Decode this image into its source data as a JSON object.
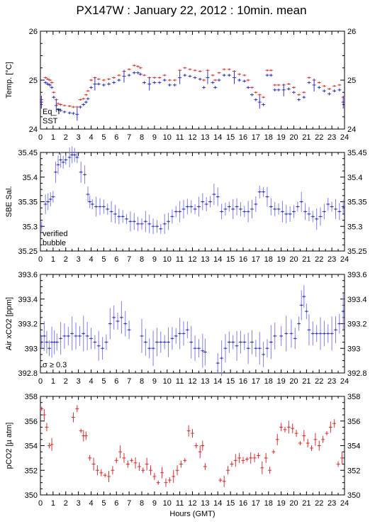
{
  "title": "PX147W : January 22, 2012 : 10min. mean",
  "colors": {
    "red": "#e03030",
    "blue": "#3535c8",
    "lightblue": "#7f7ff2",
    "magenta": "#c030c0"
  },
  "chart_data": [
    {
      "type": "scatter",
      "name": "temperature",
      "ylabel": "Temp. [°C]",
      "ylim": [
        24,
        26
      ],
      "yticks": [
        "24",
        "25",
        "26"
      ],
      "xlim": [
        0,
        24
      ],
      "legend": [
        "Eq_T",
        "SST"
      ],
      "series": [
        {
          "name": "Eq_T",
          "color": "#e03030",
          "x": [
            0.08,
            0.4,
            0.58,
            0.75,
            0.9,
            1.05,
            1.25,
            1.4,
            1.6,
            1.9,
            2.3,
            2.6,
            2.9,
            3.15,
            3.4,
            3.6,
            3.75,
            4.0,
            4.3,
            4.6,
            5.0,
            5.4,
            5.8,
            6.2,
            6.6,
            7.0,
            7.4,
            7.7,
            7.9,
            8.2,
            8.6,
            9.0,
            9.4,
            9.8,
            10.2,
            10.6,
            11.0,
            11.4,
            11.8,
            12.2,
            12.6,
            12.9,
            13.2,
            13.6,
            13.8,
            14.1,
            14.5,
            14.9,
            15.3,
            15.7,
            16.1,
            16.4,
            16.7,
            17.0,
            17.3,
            17.6,
            17.9,
            18.2,
            18.5,
            18.8,
            19.2,
            19.6,
            20.0,
            20.4,
            20.8,
            21.2,
            21.6,
            22.0,
            22.4,
            22.8,
            23.2,
            23.6,
            23.9
          ],
          "y": [
            24.6,
            25.05,
            25.02,
            25.0,
            24.95,
            24.75,
            24.6,
            24.52,
            24.5,
            24.48,
            24.47,
            24.45,
            24.45,
            24.6,
            24.62,
            24.7,
            24.78,
            25.0,
            25.05,
            25.02,
            25.0,
            25.02,
            25.05,
            25.1,
            25.18,
            25.22,
            25.3,
            25.28,
            25.25,
            25.1,
            25.05,
            25.05,
            25.05,
            25.1,
            25.0,
            25.0,
            25.2,
            25.25,
            25.22,
            25.2,
            25.18,
            25.0,
            25.2,
            25.1,
            25.0,
            25.15,
            25.22,
            25.22,
            25.18,
            25.12,
            25.1,
            25.0,
            24.85,
            24.75,
            24.7,
            24.65,
            25.2,
            25.2,
            24.9,
            24.9,
            24.9,
            24.92,
            24.85,
            24.7,
            24.75,
            25.05,
            25.0,
            24.95,
            24.88,
            24.82,
            24.88,
            24.9,
            24.65
          ]
        },
        {
          "name": "SST",
          "color": "#3535c8",
          "x": [
            0.08,
            0.4,
            0.58,
            0.75,
            0.9,
            1.05,
            1.25,
            1.4,
            1.6,
            1.9,
            2.3,
            2.6,
            2.9,
            3.15,
            3.4,
            3.6,
            3.75,
            4.0,
            4.3,
            4.6,
            5.0,
            5.4,
            5.8,
            6.2,
            6.6,
            7.0,
            7.4,
            7.7,
            7.9,
            8.2,
            8.6,
            9.0,
            9.4,
            9.8,
            10.2,
            10.6,
            11.0,
            11.4,
            11.8,
            12.2,
            12.6,
            12.9,
            13.2,
            13.6,
            13.8,
            14.1,
            14.5,
            14.9,
            15.3,
            15.7,
            16.1,
            16.4,
            16.7,
            17.0,
            17.3,
            17.6,
            17.9,
            18.2,
            18.5,
            18.8,
            19.2,
            19.6,
            20.0,
            20.4,
            20.8,
            21.2,
            21.6,
            22.0,
            22.4,
            22.8,
            23.2,
            23.6,
            23.9
          ],
          "y": [
            24.55,
            24.95,
            24.92,
            24.9,
            24.85,
            24.65,
            24.48,
            24.4,
            24.38,
            24.35,
            24.33,
            24.32,
            24.3,
            24.45,
            24.5,
            24.55,
            24.62,
            24.85,
            24.92,
            24.92,
            24.9,
            24.92,
            24.95,
            25.0,
            25.08,
            25.1,
            25.15,
            25.15,
            25.12,
            24.95,
            24.92,
            24.95,
            24.95,
            25.0,
            24.9,
            24.9,
            25.05,
            25.1,
            25.08,
            25.05,
            25.02,
            24.85,
            25.05,
            24.95,
            24.85,
            25.0,
            25.1,
            25.1,
            25.05,
            25.0,
            24.98,
            24.85,
            24.7,
            24.6,
            24.55,
            24.5,
            25.1,
            25.1,
            24.8,
            24.8,
            24.8,
            24.82,
            24.75,
            24.6,
            24.65,
            24.95,
            24.9,
            24.85,
            24.78,
            24.72,
            24.78,
            24.8,
            24.55
          ]
        }
      ]
    },
    {
      "type": "scatter",
      "name": "salinity",
      "ylabel": "SBE Sal.",
      "ylim": [
        35.25,
        35.45
      ],
      "yticks": [
        "35.25",
        "35.3",
        "35.35",
        "35.4",
        "35.45"
      ],
      "xlim": [
        0,
        24
      ],
      "legend": [
        "verified",
        "bubble"
      ],
      "series": [
        {
          "name": "verified",
          "color": "#3535c8",
          "x": [
            0.1,
            0.4,
            0.6,
            0.8,
            1.0,
            1.2,
            1.4,
            1.6,
            1.8,
            2.0,
            2.3,
            2.5,
            2.7,
            2.9,
            3.2,
            3.5,
            3.75,
            3.9,
            4.1,
            4.4,
            4.7,
            5.0,
            5.3,
            5.6,
            5.9,
            6.2,
            6.5,
            6.8,
            7.1,
            7.4,
            7.7,
            8.0,
            8.3,
            8.6,
            8.9,
            9.2,
            9.5,
            9.8,
            10.1,
            10.4,
            10.7,
            11.0,
            11.3,
            11.6,
            11.9,
            12.2,
            12.5,
            12.8,
            13.1,
            13.4,
            13.7,
            14.0,
            14.3,
            14.6,
            14.9,
            15.2,
            15.5,
            15.8,
            16.1,
            16.4,
            16.7,
            17.0,
            17.3,
            17.6,
            17.9,
            18.2,
            18.5,
            18.8,
            19.1,
            19.4,
            19.7,
            20.0,
            20.3,
            20.6,
            20.9,
            21.2,
            21.5,
            21.8,
            22.1,
            22.4,
            22.7,
            23.0,
            23.3,
            23.6,
            23.9
          ],
          "y": [
            35.3,
            35.345,
            35.35,
            35.355,
            35.36,
            35.41,
            35.425,
            35.435,
            35.43,
            35.435,
            35.44,
            35.445,
            35.445,
            35.44,
            35.41,
            35.405,
            35.365,
            35.35,
            35.345,
            35.34,
            35.34,
            35.34,
            35.335,
            35.33,
            35.325,
            35.32,
            35.32,
            35.315,
            35.31,
            35.31,
            35.305,
            35.305,
            35.31,
            35.305,
            35.3,
            35.3,
            35.295,
            35.305,
            35.31,
            35.32,
            35.33,
            35.33,
            35.335,
            35.34,
            35.34,
            35.335,
            35.34,
            35.35,
            35.345,
            35.35,
            35.365,
            35.36,
            35.33,
            35.335,
            35.34,
            35.335,
            35.34,
            35.335,
            35.33,
            35.33,
            35.335,
            35.345,
            35.37,
            35.37,
            35.36,
            35.34,
            35.335,
            35.335,
            35.33,
            35.325,
            35.325,
            35.33,
            35.34,
            35.35,
            35.33,
            35.325,
            35.32,
            35.315,
            35.32,
            35.33,
            35.345,
            35.34,
            35.335,
            35.33,
            35.34
          ]
        }
      ]
    },
    {
      "type": "scatter",
      "name": "xco2",
      "ylabel": "Air xCO2 [ppm]",
      "ylim": [
        392.8,
        393.6
      ],
      "yticks": [
        "392.8",
        "393",
        "393.2",
        "393.4",
        "393.6"
      ],
      "xlim": [
        0,
        24
      ],
      "legend": [
        "σ ≥ 0.3"
      ],
      "series": [
        {
          "name": "xCO2",
          "color": "#3535c8",
          "x": [
            0.1,
            0.3,
            0.5,
            0.7,
            0.9,
            1.1,
            1.3,
            1.6,
            1.9,
            2.2,
            2.5,
            2.8,
            3.1,
            3.4,
            3.7,
            4.0,
            4.3,
            4.6,
            4.9,
            5.2,
            5.5,
            5.8,
            6.1,
            6.4,
            6.7,
            7.0,
            8.0,
            8.3,
            8.6,
            8.9,
            9.2,
            9.5,
            9.8,
            10.1,
            10.4,
            10.7,
            11.0,
            11.3,
            11.6,
            11.9,
            12.2,
            12.5,
            12.8,
            13.0,
            14.0,
            14.3,
            14.6,
            14.9,
            15.2,
            15.5,
            15.8,
            16.1,
            16.4,
            16.7,
            17.0,
            17.3,
            17.6,
            17.9,
            18.2,
            18.5,
            19.0,
            19.4,
            19.8,
            20.1,
            20.4,
            20.6,
            20.8,
            21.0,
            21.2,
            21.5,
            21.8,
            22.1,
            22.4,
            22.7,
            23.0,
            23.3,
            23.6,
            23.9
          ],
          "y": [
            393.05,
            393.1,
            393.05,
            393.0,
            393.05,
            393.05,
            393.05,
            393.08,
            393.1,
            393.1,
            393.12,
            393.1,
            393.1,
            393.12,
            393.1,
            393.08,
            393.05,
            393.02,
            393.0,
            393.05,
            393.2,
            393.25,
            393.22,
            393.25,
            393.2,
            393.15,
            393.1,
            393.05,
            393.0,
            393.0,
            393.05,
            393.05,
            393.05,
            393.05,
            393.08,
            393.1,
            393.12,
            393.12,
            393.15,
            393.05,
            393.0,
            393.0,
            392.98,
            392.97,
            392.88,
            392.92,
            393.0,
            393.05,
            393.05,
            393.02,
            393.05,
            393.05,
            393.0,
            393.05,
            393.0,
            393.0,
            392.95,
            393.0,
            393.05,
            393.1,
            393.1,
            393.12,
            393.12,
            393.08,
            393.2,
            393.35,
            393.42,
            393.3,
            393.15,
            393.12,
            393.12,
            393.12,
            393.12,
            393.12,
            393.12,
            393.15,
            393.2,
            393.3
          ]
        }
      ]
    },
    {
      "type": "scatter",
      "name": "pco2",
      "ylabel": "pCO2 [µ atm]",
      "ylim": [
        350,
        358
      ],
      "yticks": [
        "350",
        "352",
        "354",
        "356",
        "358"
      ],
      "xlim": [
        0,
        24
      ],
      "xticks": [
        "0",
        "1",
        "2",
        "3",
        "4",
        "5",
        "6",
        "7",
        "8",
        "9",
        "10",
        "11",
        "12",
        "13",
        "14",
        "15",
        "16",
        "17",
        "18",
        "19",
        "20",
        "21",
        "22",
        "23",
        "24"
      ],
      "xlabel": "Hours (GMT)",
      "series": [
        {
          "name": "pCO2",
          "color": "#e03030",
          "x": [
            0.1,
            0.3,
            0.5,
            0.7,
            0.9,
            2.6,
            2.9,
            3.2,
            3.4,
            3.6,
            3.9,
            4.2,
            4.5,
            4.8,
            5.1,
            5.4,
            5.7,
            6.0,
            6.3,
            6.6,
            6.9,
            7.2,
            7.5,
            7.8,
            8.1,
            8.4,
            8.7,
            9.0,
            9.3,
            9.6,
            9.9,
            10.2,
            10.5,
            10.8,
            11.1,
            11.4,
            11.7,
            12.0,
            12.3,
            12.6,
            12.8,
            13.0,
            14.2,
            14.5,
            14.8,
            15.1,
            15.4,
            15.7,
            16.0,
            16.3,
            16.6,
            16.9,
            17.2,
            17.5,
            17.8,
            18.1,
            18.4,
            18.7,
            19.0,
            19.3,
            19.6,
            19.9,
            20.2,
            20.5,
            20.8,
            21.1,
            21.4,
            21.7,
            22.0,
            22.3,
            22.6,
            22.9,
            23.2,
            23.5,
            23.8
          ],
          "y": [
            357.0,
            356.5,
            355.5,
            354.0,
            354.1,
            356.3,
            357.0,
            355.2,
            354.8,
            354.8,
            353.0,
            352.5,
            352.0,
            351.8,
            351.6,
            351.5,
            352.0,
            352.8,
            353.5,
            353.0,
            352.5,
            352.8,
            352.6,
            352.3,
            352.0,
            352.5,
            352.0,
            351.5,
            351.0,
            351.8,
            351.0,
            351.2,
            351.5,
            352.0,
            352.5,
            352.8,
            355.2,
            355.0,
            354.0,
            353.5,
            354.0,
            352.3,
            351.2,
            351.1,
            352.0,
            352.5,
            352.8,
            353.0,
            352.8,
            352.9,
            353.0,
            353.0,
            353.2,
            352.2,
            353.0,
            352.0,
            353.5,
            354.5,
            355.5,
            355.3,
            355.5,
            355.4,
            355.0,
            354.2,
            354.8,
            354.2,
            353.8,
            354.5,
            354.0,
            354.5,
            355.0,
            355.5,
            355.8,
            352.5,
            353.0
          ]
        }
      ]
    }
  ]
}
